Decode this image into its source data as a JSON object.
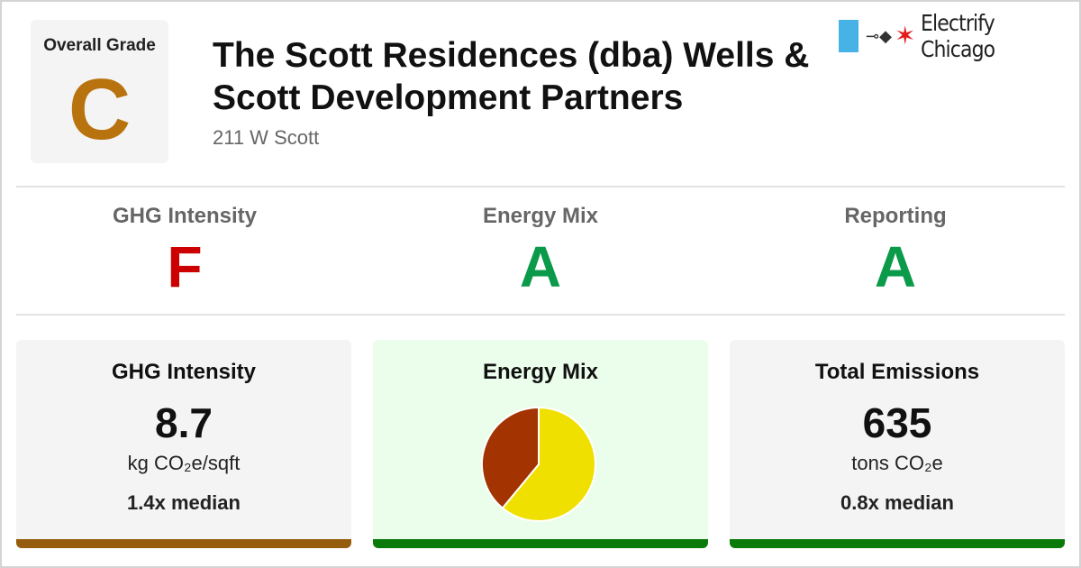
{
  "overall": {
    "label": "Overall Grade",
    "grade": "C",
    "grade_color": "#b8730f"
  },
  "building": {
    "title": "The Scott Residences (dba) Wells & Scott Development Partners",
    "address": "211 W Scott"
  },
  "brand": {
    "name": "Electrify Chicago",
    "flag_color": "#47b2e6",
    "star_color": "#e21b1b",
    "icons": [
      "chicago-flag-icon",
      "plug-icon",
      "star-icon"
    ]
  },
  "grades": [
    {
      "label": "GHG Intensity",
      "grade": "F",
      "color": "#cc0000"
    },
    {
      "label": "Energy Mix",
      "grade": "A",
      "color": "#0a9a4a"
    },
    {
      "label": "Reporting",
      "grade": "A",
      "color": "#0a9a4a"
    }
  ],
  "cards": {
    "ghg": {
      "title": "GHG Intensity",
      "value": "8.7",
      "unit": "kg CO₂e/sqft",
      "median": "1.4x median",
      "bg": "#f4f4f4",
      "bar_color": "#955c0d"
    },
    "mix": {
      "title": "Energy Mix",
      "bg": "#ebfdeb",
      "bar_color": "#0a7a0a"
    },
    "emissions": {
      "title": "Total Emissions",
      "value": "635",
      "unit": "tons CO₂e",
      "median": "0.8x median",
      "bg": "#f4f4f4",
      "bar_color": "#0a7a0a"
    }
  },
  "chart_data": {
    "type": "pie",
    "slices": [
      {
        "value": 0.61,
        "color": "#f0e000"
      },
      {
        "value": 0.39,
        "color": "#a33300"
      }
    ]
  }
}
